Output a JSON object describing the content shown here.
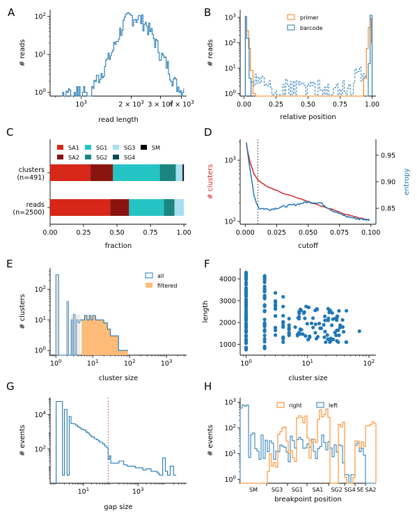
{
  "panels": {
    "A": {
      "letter": "A",
      "xlabel": "read length",
      "ylabel": "# reads",
      "xticks": [
        "10^3",
        "2 × 10^3",
        "3 × 10^3",
        "4 × 10^3"
      ],
      "yticks": [
        "10^0",
        "10^1",
        "10^2"
      ]
    },
    "B": {
      "letter": "B",
      "xlabel": "relative position",
      "ylabel": "# reads",
      "xticks": [
        "0.00",
        "0.25",
        "0.50",
        "0.75",
        "1.00"
      ],
      "yticks": [
        "10^0",
        "10^1",
        "10^2",
        "10^3"
      ],
      "legend": [
        "primer",
        "barcode"
      ]
    },
    "C": {
      "letter": "C",
      "xlabel": "fraction",
      "xticks": [
        "0.00",
        "0.25",
        "0.50",
        "0.75",
        "1.00"
      ],
      "rows": [
        {
          "name": "clusters",
          "sub": "(n=491)"
        },
        {
          "name": "reads",
          "sub": "(n=2500)"
        }
      ],
      "legend": [
        "SA1",
        "SA2",
        "SG1",
        "SG2",
        "SG3",
        "SG4",
        "SM"
      ]
    },
    "D": {
      "letter": "D",
      "xlabel": "cutoff",
      "ylabel": "# clusters",
      "y2label": "entropy",
      "xticks": [
        "0.000",
        "0.025",
        "0.050",
        "0.075",
        "0.100"
      ],
      "yticks": [
        "10^2",
        "10^3"
      ],
      "y2ticks": [
        "0.85",
        "0.90",
        "0.95"
      ]
    },
    "E": {
      "letter": "E",
      "xlabel": "cluster size",
      "ylabel": "# clusters",
      "xticks": [
        "10^0",
        "10^1",
        "10^2",
        "10^3"
      ],
      "yticks": [
        "10^0",
        "10^1",
        "10^2"
      ],
      "legend": [
        "all",
        "filtered"
      ]
    },
    "F": {
      "letter": "F",
      "xlabel": "cluster size",
      "ylabel": "length",
      "xticks": [
        "10^0",
        "10^1",
        "10^2"
      ],
      "yticks": [
        "1000",
        "2000",
        "3000",
        "4000"
      ]
    },
    "G": {
      "letter": "G",
      "xlabel": "gap size",
      "ylabel": "# events",
      "xticks": [
        "10^1",
        "10^3"
      ],
      "yticks": [
        "10^2",
        "10^4"
      ]
    },
    "H": {
      "letter": "H",
      "xlabel": "breakpoint position",
      "ylabel": "# events",
      "xticks": [
        "SM",
        "SG3",
        "SG1",
        "SA1",
        "SG2",
        "SG4",
        "SE",
        "SA2"
      ],
      "yticks": [
        "10^0",
        "10^1",
        "10^2",
        "10^3"
      ],
      "legend": [
        "right",
        "left"
      ]
    }
  },
  "colors": {
    "blue": "#1f77b4",
    "orange": "#ff7f0e",
    "red": "#d62728",
    "lightorange": "#ffbb78",
    "SA1": "#d62718",
    "SA2": "#8a1510",
    "SG1": "#25c4c4",
    "SG2": "#1b8580",
    "SG3": "#a7dff0",
    "SG4": "#0b4a4f",
    "SM": "#000000"
  },
  "chart_data": [
    {
      "panel": "A",
      "type": "area",
      "title": "",
      "xlabel": "read length",
      "ylabel": "# reads",
      "x_scale": "log",
      "y_scale": "log",
      "xlim": [
        650,
        4300
      ],
      "ylim": [
        0.8,
        150
      ],
      "series": [
        {
          "x": [
            750,
            800,
            900,
            1000,
            1100,
            1200,
            1300,
            1400,
            1500,
            1600,
            1700,
            1800,
            1900,
            2000,
            2200,
            2400,
            2600,
            2800,
            3000,
            3300,
            3600,
            4000
          ],
          "values": [
            1,
            1,
            1,
            1,
            1,
            2,
            3,
            6,
            10,
            20,
            40,
            70,
            95,
            100,
            90,
            70,
            40,
            20,
            10,
            5,
            2,
            1
          ]
        }
      ]
    },
    {
      "panel": "B",
      "type": "area",
      "title": "",
      "xlabel": "relative position",
      "ylabel": "# reads",
      "y_scale": "log",
      "xlim": [
        -0.03,
        1.03
      ],
      "ylim": [
        0.8,
        2000
      ],
      "series": [
        {
          "name": "primer",
          "x": [
            0.0,
            0.02,
            0.04,
            0.06,
            0.08,
            0.92,
            0.94,
            0.96,
            0.98,
            1.0
          ],
          "values": [
            1,
            1000,
            300,
            50,
            2,
            2,
            50,
            300,
            1000,
            1
          ]
        },
        {
          "name": "barcode",
          "x": [
            0.0,
            0.03,
            0.06,
            0.1,
            0.3,
            0.5,
            0.7,
            0.85,
            0.92,
            0.96,
            1.0
          ],
          "values": [
            1,
            1200,
            80,
            5,
            3,
            2,
            3,
            5,
            8,
            1000,
            1
          ]
        }
      ]
    },
    {
      "panel": "C",
      "type": "bar",
      "title": "",
      "xlabel": "fraction",
      "xlim": [
        0,
        1.02
      ],
      "categories": [
        "clusters\n(n=491)",
        "reads\n(n=2500)"
      ],
      "series": [
        {
          "name": "SA1",
          "values": [
            0.3,
            0.45
          ]
        },
        {
          "name": "SA2",
          "values": [
            0.17,
            0.14
          ]
        },
        {
          "name": "SG1",
          "values": [
            0.35,
            0.26
          ]
        },
        {
          "name": "SG2",
          "values": [
            0.12,
            0.08
          ]
        },
        {
          "name": "SG3",
          "values": [
            0.05,
            0.07
          ]
        },
        {
          "name": "SG4",
          "values": [
            0.0,
            0.0
          ]
        },
        {
          "name": "SM",
          "values": [
            0.01,
            0.0
          ]
        }
      ]
    },
    {
      "panel": "D",
      "type": "line",
      "title": "",
      "xlabel": "cutoff",
      "ylabel": "# clusters",
      "y2label": "entropy",
      "xlim": [
        -0.004,
        0.104
      ],
      "ylim": [
        90,
        2200
      ],
      "y_scale": "log",
      "y2lim": [
        0.82,
        0.98
      ],
      "vline": 0.01,
      "series": [
        {
          "name": "# clusters",
          "axis": "left",
          "x": [
            0.001,
            0.004,
            0.007,
            0.01,
            0.015,
            0.02,
            0.03,
            0.04,
            0.05,
            0.06,
            0.07,
            0.08,
            0.09,
            0.1
          ],
          "values": [
            1800,
            900,
            600,
            480,
            400,
            350,
            290,
            250,
            210,
            180,
            155,
            130,
            115,
            105
          ]
        },
        {
          "name": "entropy",
          "axis": "right",
          "x": [
            0.001,
            0.003,
            0.005,
            0.007,
            0.009,
            0.011,
            0.02,
            0.03,
            0.04,
            0.05,
            0.06,
            0.07,
            0.08,
            0.09,
            0.1
          ],
          "values": [
            0.975,
            0.935,
            0.905,
            0.875,
            0.86,
            0.85,
            0.848,
            0.853,
            0.857,
            0.862,
            0.86,
            0.845,
            0.835,
            0.83,
            0.828
          ]
        }
      ]
    },
    {
      "panel": "E",
      "type": "area",
      "title": "",
      "xlabel": "cluster size",
      "ylabel": "# clusters",
      "x_scale": "log",
      "y_scale": "log",
      "xlim": [
        0.7,
        3500
      ],
      "ylim": [
        0.7,
        500
      ],
      "series": [
        {
          "name": "all",
          "x": [
            1,
            2,
            3,
            4,
            5,
            6,
            8,
            10,
            15,
            20,
            30,
            40,
            60,
            80,
            100
          ],
          "values": [
            300,
            40,
            10,
            8,
            10,
            10,
            10,
            10,
            10,
            8,
            5,
            3,
            2,
            1,
            1
          ]
        },
        {
          "name": "filtered",
          "x": [
            5,
            6,
            8,
            10,
            15,
            20,
            30,
            40,
            60,
            80
          ],
          "values": [
            10,
            10,
            10,
            10,
            10,
            8,
            5,
            3,
            2,
            1
          ]
        }
      ]
    },
    {
      "panel": "F",
      "type": "scatter",
      "title": "",
      "xlabel": "cluster size",
      "ylabel": "length",
      "x_scale": "log",
      "xlim": [
        0.8,
        130
      ],
      "ylim": [
        500,
        4500
      ],
      "series": [
        {
          "x": [
            1,
            1,
            1,
            1,
            1,
            1,
            1,
            1,
            1,
            1,
            1,
            1,
            2,
            2,
            2,
            2,
            2,
            2,
            2,
            3,
            3,
            3,
            4,
            4,
            5,
            6,
            7,
            8,
            10,
            10,
            12,
            15,
            15,
            20,
            20,
            25,
            30,
            40,
            70
          ],
          "values": [
            800,
            1200,
            1500,
            1800,
            2000,
            2200,
            2500,
            2800,
            3200,
            3600,
            4000,
            4300,
            1000,
            1500,
            2000,
            2500,
            3000,
            3500,
            4200,
            1200,
            2000,
            3400,
            1500,
            2800,
            2200,
            3500,
            1800,
            2600,
            2000,
            3000,
            1500,
            2200,
            2700,
            1400,
            2100,
            1800,
            1600,
            1500,
            1600
          ]
        }
      ]
    },
    {
      "panel": "G",
      "type": "area",
      "title": "",
      "xlabel": "gap size",
      "ylabel": "# events",
      "x_scale": "log",
      "y_scale": "log",
      "xlim": [
        0.6,
        60000
      ],
      "ylim": [
        1,
        100000
      ],
      "vline": 80,
      "series": [
        {
          "x": [
            1,
            2,
            3,
            5,
            8,
            10,
            20,
            40,
            80,
            100,
            200,
            500,
            1000,
            2000,
            5000,
            8000,
            10000,
            20000
          ],
          "values": [
            60000,
            20000,
            8000,
            3000,
            2000,
            1500,
            700,
            300,
            100,
            25,
            15,
            10,
            8,
            6,
            3,
            30,
            5,
            10
          ]
        }
      ]
    },
    {
      "panel": "H",
      "type": "area",
      "title": "",
      "xlabel": "breakpoint position",
      "ylabel": "# events",
      "y_scale": "log",
      "ylim": [
        0.7,
        1500
      ],
      "x_scale": "categorical-regions",
      "regions": [
        "SM",
        "SG3",
        "SG1",
        "SA1",
        "SG2",
        "SG4",
        "SE",
        "SA2"
      ],
      "series": [
        {
          "name": "right",
          "values": [
            50,
            10,
            30,
            300,
            700,
            20,
            3,
            150
          ]
        },
        {
          "name": "left",
          "values": [
            700,
            30,
            60,
            50,
            10,
            5,
            5,
            30
          ]
        }
      ]
    }
  ]
}
